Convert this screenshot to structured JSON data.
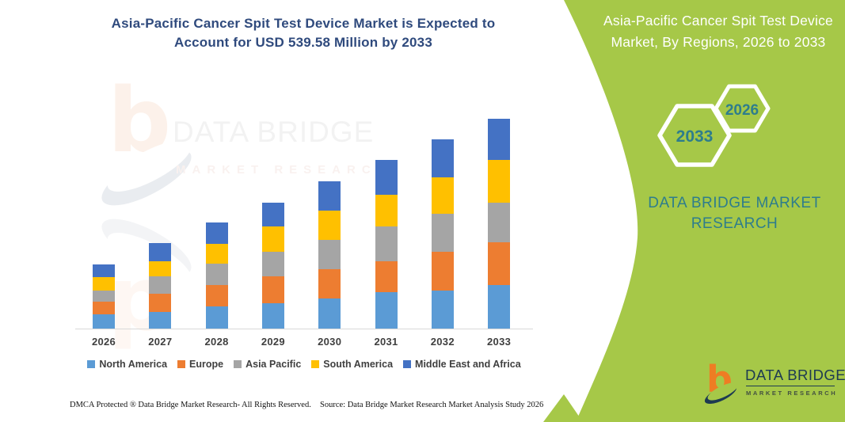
{
  "header": {
    "title": "Asia-Pacific Cancer Spit Test Device Market is Expected to Account for USD 539.58 Million by 2033"
  },
  "side_panel": {
    "title": "Asia-Pacific Cancer Spit Test Device Market, By Regions, 2026 to 2033",
    "hexagons": [
      {
        "label": "2033"
      },
      {
        "label": "2026"
      }
    ],
    "brand_text": "DATA BRIDGE MARKET RESEARCH",
    "logo": {
      "name": "DATA BRIDGE",
      "subname": "MARKET RESEARCH"
    },
    "colors": {
      "panel_green": "#a6c848",
      "text_teal": "#2e7d8c",
      "hex_outline": "#ffffff"
    }
  },
  "watermark": {
    "glyph": "b",
    "line1": "DATA BRIDGE",
    "line2": "MARKET RESEARCH"
  },
  "chart_data": {
    "type": "bar",
    "stacked": true,
    "unit": "USD Million",
    "categories": [
      "2026",
      "2027",
      "2028",
      "2029",
      "2030",
      "2031",
      "2032",
      "2033"
    ],
    "series": [
      {
        "name": "North America",
        "color": "#5b9bd5",
        "values": [
          36.6,
          42.8,
          57.0,
          65.2,
          77.4,
          93.7,
          97.7,
          112.0
        ]
      },
      {
        "name": "Europe",
        "color": "#ed7d31",
        "values": [
          32.6,
          46.8,
          55.0,
          69.2,
          75.3,
          79.4,
          99.8,
          110.0
        ]
      },
      {
        "name": "Asia Pacific",
        "color": "#a5a5a5",
        "values": [
          28.5,
          44.8,
          55.0,
          63.1,
          75.3,
          89.6,
          97.7,
          101.8
        ]
      },
      {
        "name": "South America",
        "color": "#ffc000",
        "values": [
          34.6,
          38.7,
          50.9,
          65.2,
          75.3,
          81.4,
          93.7,
          110.0
        ]
      },
      {
        "name": "Middle East and Africa",
        "color": "#4472c4",
        "values": [
          32.6,
          46.8,
          55.0,
          61.1,
          75.3,
          89.6,
          97.7,
          105.8
        ]
      }
    ],
    "totals": [
      165.0,
      219.9,
      272.9,
      323.8,
      378.6,
      433.7,
      486.6,
      539.58
    ],
    "ylim": [
      0,
      560
    ],
    "grid": false,
    "legend_position": "bottom"
  },
  "footer": {
    "left": "DMCA Protected ® Data Bridge Market Research-  All Rights Reserved.",
    "right": "Source: Data Bridge Market Research  Market Analysis Study 2026"
  }
}
